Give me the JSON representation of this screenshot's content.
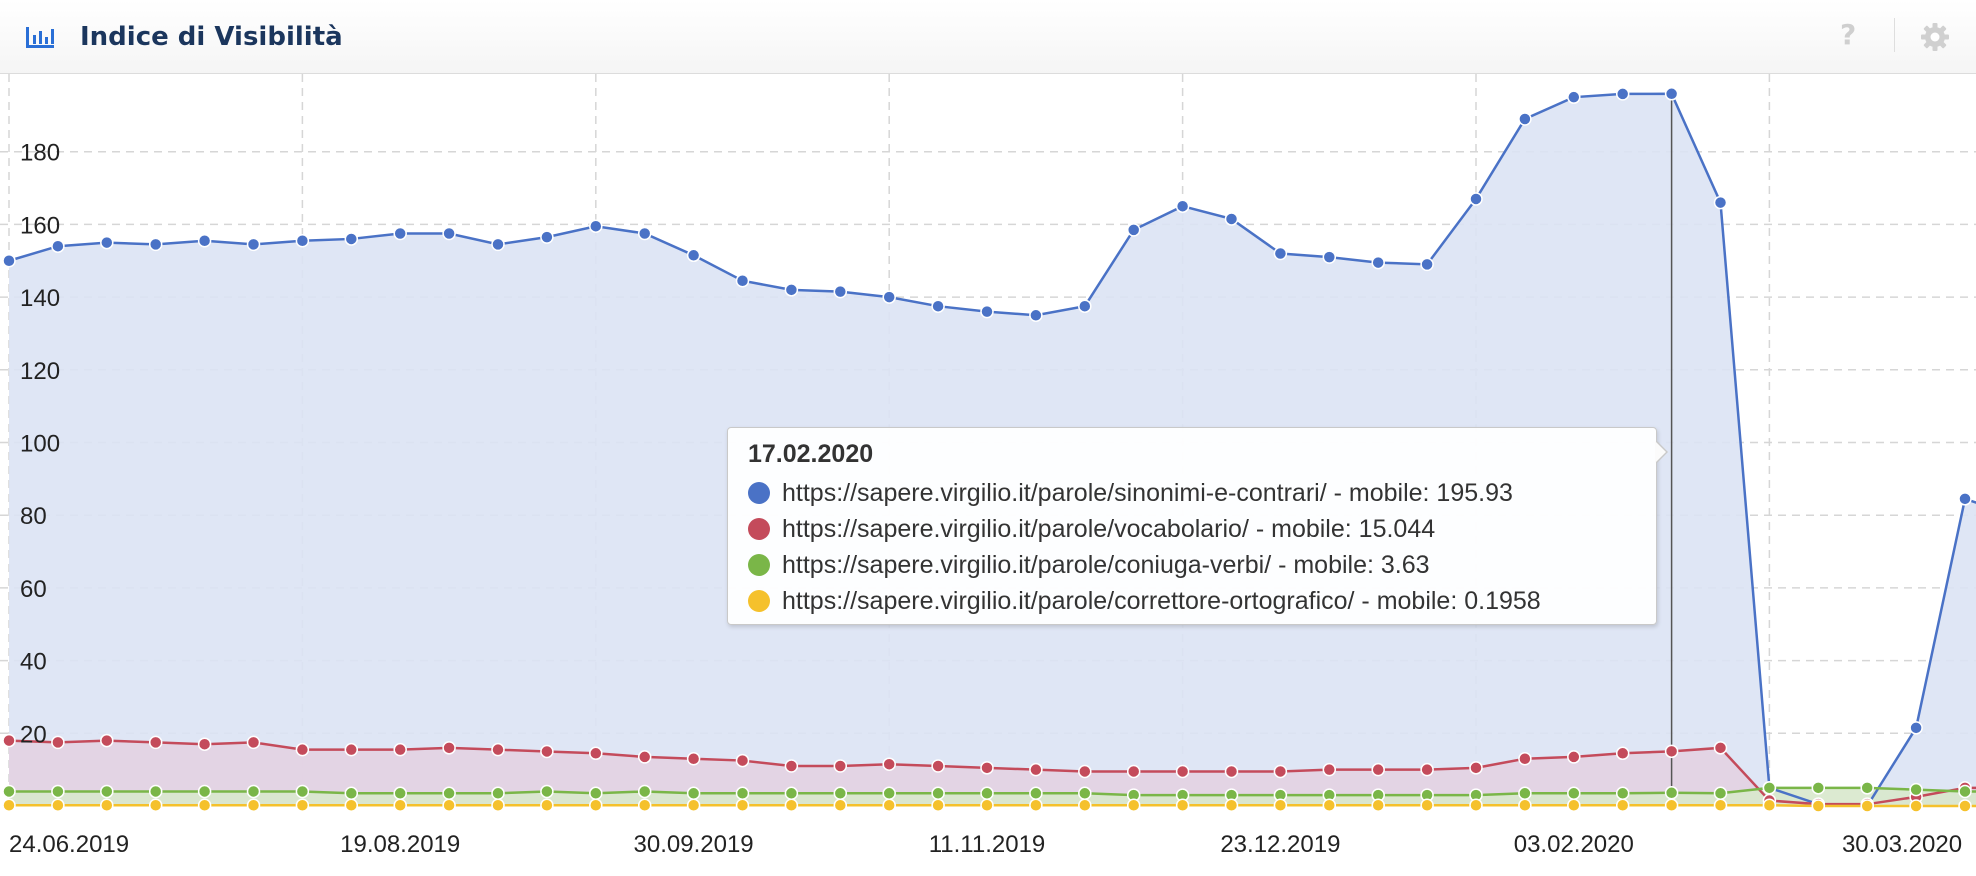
{
  "header": {
    "title": "Indice di Visibilità",
    "chart_icon": "bar-chart-icon",
    "help_label": "?",
    "help_icon": "help-icon",
    "settings_icon": "gear-icon"
  },
  "tooltip": {
    "date": "17.02.2020",
    "rows": [
      {
        "label": "https://sapere.virgilio.it/parole/sinonimi-e-contrari/ - mobile: 195.93",
        "color": "#4a72c6"
      },
      {
        "label": "https://sapere.virgilio.it/parole/vocabolario/ - mobile: 15.044",
        "color": "#c44b5b"
      },
      {
        "label": "https://sapere.virgilio.it/parole/coniuga-verbi/ - mobile: 3.63",
        "color": "#7ab648"
      },
      {
        "label": "https://sapere.virgilio.it/parole/correttore-ortografico/ - mobile: 0.1958",
        "color": "#f5c12c"
      }
    ]
  },
  "chart_data": {
    "type": "area",
    "x": [
      "24.06.2019",
      "01.07.2019",
      "08.07.2019",
      "15.07.2019",
      "22.07.2019",
      "29.07.2019",
      "05.08.2019",
      "12.08.2019",
      "19.08.2019",
      "26.08.2019",
      "02.09.2019",
      "09.09.2019",
      "16.09.2019",
      "23.09.2019",
      "30.09.2019",
      "07.10.2019",
      "14.10.2019",
      "21.10.2019",
      "28.10.2019",
      "04.11.2019",
      "11.11.2019",
      "18.11.2019",
      "25.11.2019",
      "02.12.2019",
      "09.12.2019",
      "16.12.2019",
      "23.12.2019",
      "30.12.2019",
      "06.01.2020",
      "13.01.2020",
      "20.01.2020",
      "27.01.2020",
      "03.02.2020",
      "10.02.2020",
      "17.02.2020",
      "24.02.2020",
      "02.03.2020",
      "09.03.2020",
      "16.03.2020",
      "23.03.2020",
      "30.03.2020",
      "06.04.2020"
    ],
    "x_tick_labels": [
      "24.06.2019",
      "19.08.2019",
      "30.09.2019",
      "11.11.2019",
      "23.12.2019",
      "03.02.2020",
      "30.03.2020"
    ],
    "x_tick_indices": [
      0,
      8,
      14,
      20,
      26,
      32,
      40
    ],
    "series": [
      {
        "name": "https://sapere.virgilio.it/parole/sinonimi-e-contrari/ - mobile",
        "color": "#4a72c6",
        "fill": "#dbe3f4",
        "values": [
          150,
          154,
          155,
          154.5,
          155.5,
          154.5,
          155.5,
          156,
          157.5,
          157.5,
          154.5,
          156.5,
          159.5,
          157.5,
          151.5,
          144.5,
          142,
          141.5,
          140,
          137.5,
          136,
          135,
          137.5,
          158.5,
          165,
          161.5,
          152,
          151,
          149.5,
          149,
          167,
          189,
          195,
          195.9,
          195.93,
          166,
          5,
          0.5,
          0,
          21.5,
          84.5,
          80
        ]
      },
      {
        "name": "https://sapere.virgilio.it/parole/vocabolario/ - mobile",
        "color": "#c44b5b",
        "fill": "#e3d2e2",
        "values": [
          18,
          17.5,
          18,
          17.5,
          17,
          17.5,
          15.5,
          15.5,
          15.5,
          16,
          15.5,
          15,
          14.5,
          13.5,
          13,
          12.5,
          11,
          11,
          11.5,
          11,
          10.5,
          10,
          9.5,
          9.5,
          9.5,
          9.5,
          9.5,
          10,
          10,
          10,
          10.5,
          13,
          13.5,
          14.5,
          15.044,
          16,
          1.5,
          0.5,
          0.5,
          2.5,
          5,
          5
        ]
      },
      {
        "name": "https://sapere.virgilio.it/parole/coniuga-verbi/ - mobile",
        "color": "#7ab648",
        "fill": "#d8e8cc",
        "values": [
          4,
          4,
          4,
          4,
          4,
          4,
          4,
          3.5,
          3.5,
          3.5,
          3.5,
          4,
          3.5,
          4,
          3.5,
          3.5,
          3.5,
          3.5,
          3.5,
          3.5,
          3.5,
          3.5,
          3.5,
          3,
          3,
          3,
          3,
          3,
          3,
          3,
          3,
          3.5,
          3.5,
          3.5,
          3.63,
          3.5,
          5,
          5,
          5,
          4.5,
          4,
          4
        ]
      },
      {
        "name": "https://sapere.virgilio.it/parole/correttore-ortografico/ - mobile",
        "color": "#f5c12c",
        "fill": "#f4e3b0",
        "values": [
          0.2,
          0.2,
          0.2,
          0.2,
          0.2,
          0.2,
          0.2,
          0.2,
          0.2,
          0.2,
          0.2,
          0.2,
          0.2,
          0.2,
          0.2,
          0.2,
          0.2,
          0.2,
          0.2,
          0.2,
          0.2,
          0.2,
          0.2,
          0.2,
          0.2,
          0.2,
          0.2,
          0.2,
          0.2,
          0.2,
          0.2,
          0.2,
          0.2,
          0.2,
          0.1958,
          0.2,
          0.2,
          0,
          0,
          0,
          0,
          0
        ]
      }
    ],
    "y_ticks": [
      20,
      40,
      60,
      80,
      100,
      120,
      140,
      160,
      180
    ],
    "ylim": [
      0,
      200
    ],
    "grid": true,
    "hover_index": 34
  }
}
